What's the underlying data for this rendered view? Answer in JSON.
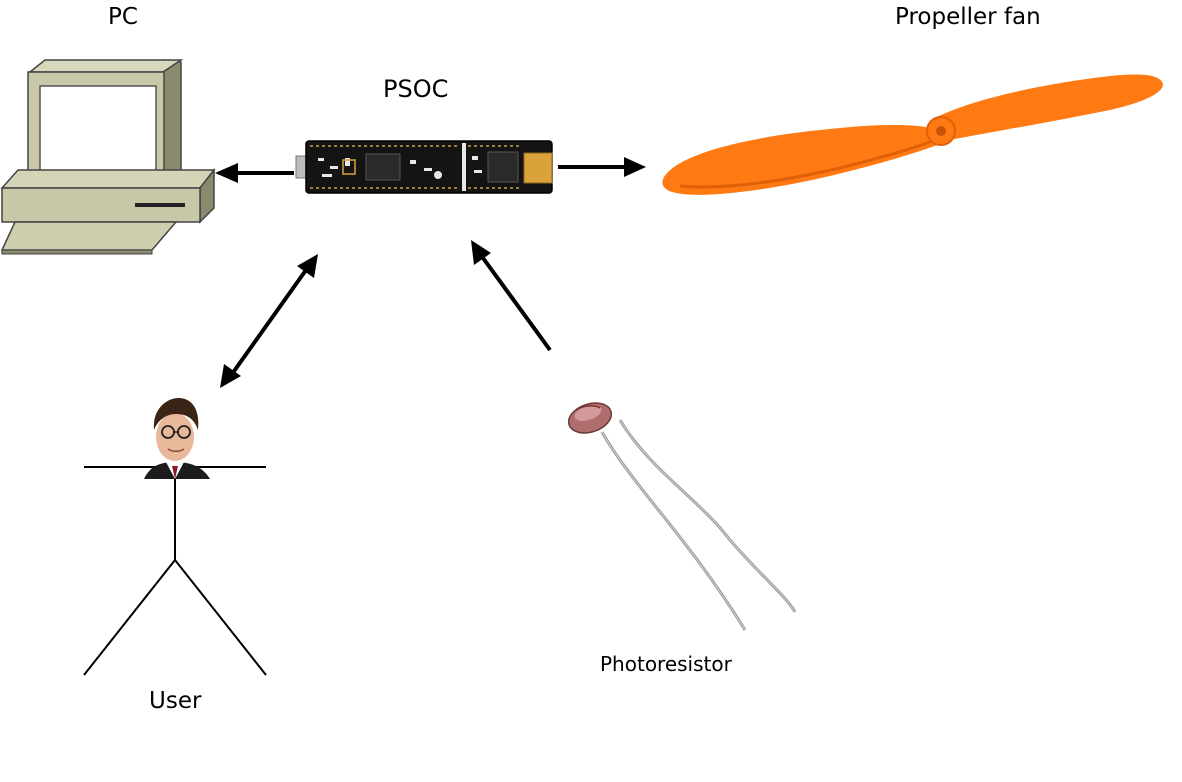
{
  "labels": {
    "pc": "PC",
    "psoc": "PSOC",
    "fan": "Propeller fan",
    "user": "User",
    "photoresistor": "Photoresistor"
  },
  "colors": {
    "fan": "#ff7a12",
    "fan_dark": "#e0600a",
    "pcb": "#141414",
    "pc_body": "#c8c8a8",
    "pc_shadow": "#8a8a6e",
    "arrow": "#000000"
  },
  "icons": {
    "pc": "desktop-computer-icon",
    "board": "psoc-board-icon",
    "fan": "propeller-icon",
    "user": "stick-figure-icon",
    "sensor": "photoresistor-icon"
  }
}
